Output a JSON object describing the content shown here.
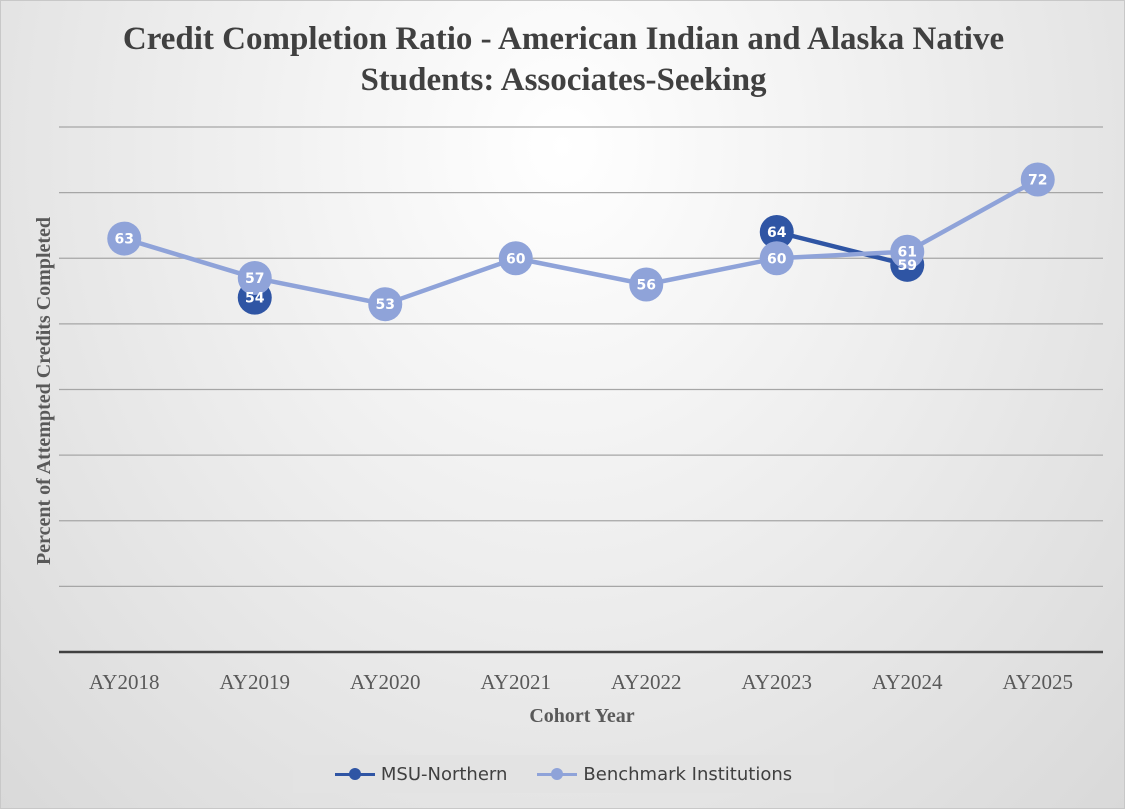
{
  "chart_data": {
    "type": "line",
    "title": "Credit Completion Ratio - American Indian and Alaska Native Students: Associates-Seeking",
    "xlabel": "Cohort Year",
    "ylabel": "Percent of  Attempted Credits Completed",
    "categories": [
      "AY2018",
      "AY2019",
      "AY2020",
      "AY2021",
      "AY2022",
      "AY2023",
      "AY2024",
      "AY2025"
    ],
    "ylim": [
      0,
      80
    ],
    "y_gridline_step": 10,
    "y_tick_labels_shown": false,
    "grid": true,
    "legend_position": "bottom",
    "series": [
      {
        "name": "MSU-Northern",
        "color": "#2f55a4",
        "values": [
          null,
          54,
          null,
          null,
          null,
          64,
          59,
          null
        ],
        "labels": [
          "",
          "54",
          "",
          "",
          "",
          "64",
          "59",
          ""
        ]
      },
      {
        "name": "Benchmark Institutions",
        "color": "#8fa3d9",
        "values": [
          63,
          57,
          53,
          60,
          56,
          60,
          61,
          72
        ],
        "labels": [
          "63",
          "57",
          "53",
          "60",
          "56",
          "60",
          "61",
          "72"
        ]
      }
    ]
  }
}
